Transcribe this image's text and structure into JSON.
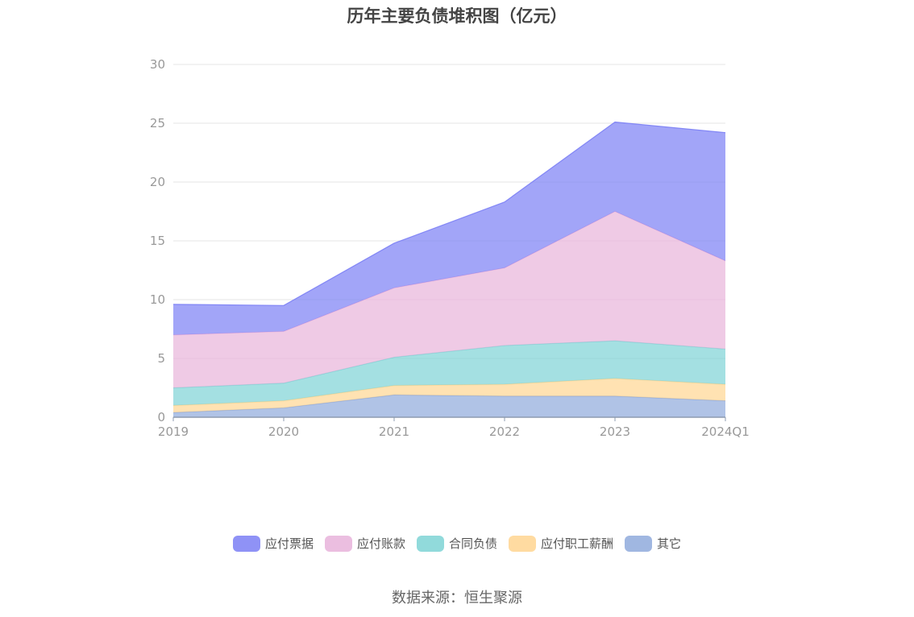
{
  "chart_data": {
    "type": "area",
    "stacked": true,
    "title": "历年主要负债堆积图（亿元）",
    "categories": [
      "2019",
      "2020",
      "2021",
      "2022",
      "2023",
      "2024Q1"
    ],
    "ylim": [
      0,
      30
    ],
    "yticks": [
      0,
      5,
      10,
      15,
      20,
      25,
      30
    ],
    "grid": true,
    "legend_position": "bottom",
    "series": [
      {
        "name": "其它",
        "color": "#8FAADC",
        "values": [
          0.4,
          0.8,
          1.9,
          1.8,
          1.8,
          1.4
        ]
      },
      {
        "name": "应付职工薪酬",
        "color": "#FFD591",
        "values": [
          0.6,
          0.6,
          0.8,
          1.0,
          1.5,
          1.4
        ]
      },
      {
        "name": "合同负债",
        "color": "#7ED3D5",
        "values": [
          1.5,
          1.5,
          2.4,
          3.3,
          3.2,
          3.0
        ]
      },
      {
        "name": "应付账款",
        "color": "#E8B3DA",
        "values": [
          4.5,
          4.4,
          5.9,
          6.6,
          11.0,
          7.5
        ]
      },
      {
        "name": "应付票据",
        "color": "#7B7FF5",
        "values": [
          2.6,
          2.2,
          3.8,
          5.6,
          7.6,
          10.9
        ]
      }
    ],
    "legend_order": [
      "应付票据",
      "应付账款",
      "合同负债",
      "应付职工薪酬",
      "其它"
    ]
  },
  "source_text": "数据来源：恒生聚源"
}
